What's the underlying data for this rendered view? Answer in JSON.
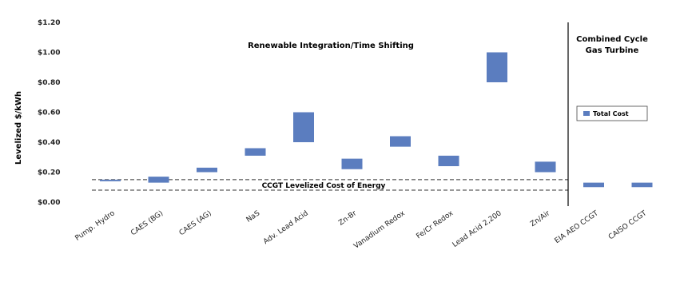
{
  "chart_data": {
    "type": "bar",
    "subtype": "floating-range",
    "ylabel": "Levelized $/kWh",
    "ylim": [
      0,
      1.2
    ],
    "yticks": [
      0,
      0.2,
      0.4,
      0.6,
      0.8,
      1.0,
      1.2
    ],
    "ytick_labels": [
      "$0.00",
      "$0.20",
      "$0.40",
      "$0.60",
      "$0.80",
      "$1.00",
      "$1.20"
    ],
    "grid": false,
    "legend": {
      "placement": "right",
      "entries": [
        "Total Cost"
      ]
    },
    "categories": [
      "Pump. Hydro",
      "CAES (BG)",
      "CAES (AG)",
      "NaS",
      "Adv. Lead Acid",
      "Zn-Br",
      "Vanadium Redox",
      "Fe/Cr Redox",
      "Lead Acid 2,200",
      "Zn/Air",
      "EIA AEO CCGT",
      "CAISO CCGT"
    ],
    "series": [
      {
        "name": "Total Cost",
        "low": [
          0.14,
          0.13,
          0.2,
          0.31,
          0.4,
          0.22,
          0.37,
          0.24,
          0.8,
          0.2,
          0.1,
          0.1
        ],
        "high": [
          0.15,
          0.17,
          0.23,
          0.36,
          0.6,
          0.29,
          0.44,
          0.31,
          1.0,
          0.27,
          0.13,
          0.13
        ]
      }
    ],
    "reference_band": {
      "label": "CCGT Levelized Cost of Energy",
      "low": 0.08,
      "high": 0.15
    },
    "annotations": {
      "left_section": "Renewable Integration/Time Shifting",
      "right_section_line1": "Combined Cycle",
      "right_section_line2": "Gas Turbine"
    },
    "colors": {
      "bar": "#5b7dbf",
      "text": "#222222",
      "divider": "#000000",
      "band": "#333333"
    }
  }
}
